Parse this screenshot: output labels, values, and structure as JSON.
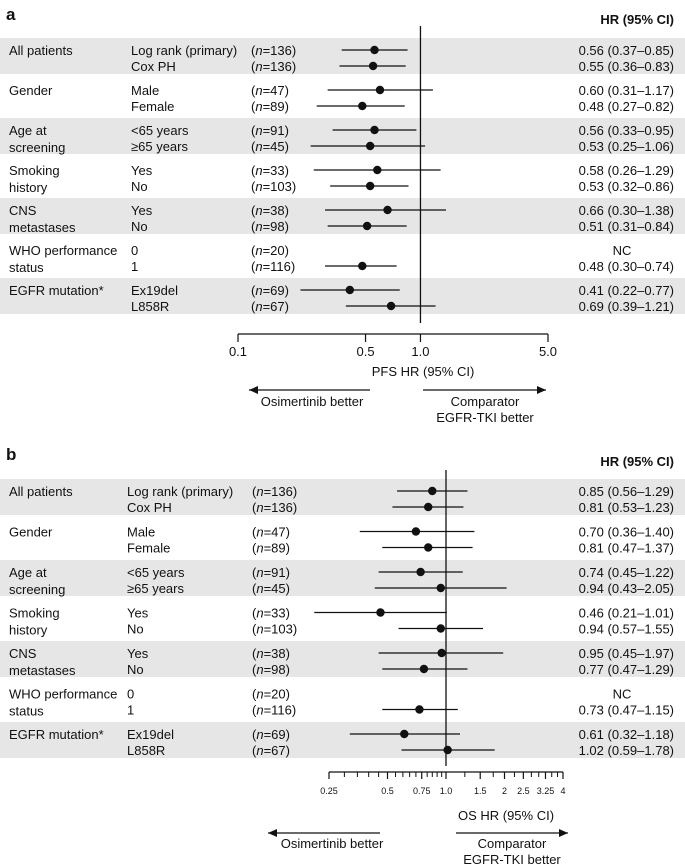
{
  "chart_data": [
    {
      "type": "forest",
      "panel_label": "a",
      "hr_header": "HR (95% CI)",
      "axis_label": "PFS HR (95% CI)",
      "x_scale": "log",
      "xlim": [
        0.1,
        5.0
      ],
      "ticks": [
        {
          "value": 0.1,
          "label": "0.1"
        },
        {
          "value": 0.5,
          "label": "0.5"
        },
        {
          "value": 1.0,
          "label": "1.0"
        },
        {
          "value": 5.0,
          "label": "5.0"
        }
      ],
      "reference_line": 1.0,
      "favors_left": [
        "Osimertinib better"
      ],
      "favors_right": [
        "Comparator",
        "EGFR-TKI better"
      ],
      "groups": [
        {
          "label": [
            "All patients"
          ],
          "rows": [
            {
              "subgroup": "Log rank (primary)",
              "n": "136",
              "hr": 0.56,
              "lo": 0.37,
              "hi": 0.85,
              "text": "0.56 (0.37–0.85)"
            },
            {
              "subgroup": "Cox PH",
              "n": "136",
              "hr": 0.55,
              "lo": 0.36,
              "hi": 0.83,
              "text": "0.55 (0.36–0.83)"
            }
          ]
        },
        {
          "label": [
            "Gender"
          ],
          "rows": [
            {
              "subgroup": "Male",
              "n": "47",
              "hr": 0.6,
              "lo": 0.31,
              "hi": 1.17,
              "text": "0.60 (0.31–1.17)"
            },
            {
              "subgroup": "Female",
              "n": "89",
              "hr": 0.48,
              "lo": 0.27,
              "hi": 0.82,
              "text": "0.48 (0.27–0.82)"
            }
          ]
        },
        {
          "label": [
            "Age at",
            "screening"
          ],
          "rows": [
            {
              "subgroup": "<65 years",
              "n": "91",
              "hr": 0.56,
              "lo": 0.33,
              "hi": 0.95,
              "text": "0.56 (0.33–0.95)"
            },
            {
              "subgroup": "≥65 years",
              "n": "45",
              "hr": 0.53,
              "lo": 0.25,
              "hi": 1.06,
              "text": "0.53 (0.25–1.06)"
            }
          ]
        },
        {
          "label": [
            "Smoking",
            "history"
          ],
          "rows": [
            {
              "subgroup": "Yes",
              "n": "33",
              "hr": 0.58,
              "lo": 0.26,
              "hi": 1.29,
              "text": "0.58 (0.26–1.29)"
            },
            {
              "subgroup": "No",
              "n": "103",
              "hr": 0.53,
              "lo": 0.32,
              "hi": 0.86,
              "text": "0.53 (0.32–0.86)"
            }
          ]
        },
        {
          "label": [
            "CNS",
            "metastases"
          ],
          "rows": [
            {
              "subgroup": "Yes",
              "n": "38",
              "hr": 0.66,
              "lo": 0.3,
              "hi": 1.38,
              "text": "0.66 (0.30–1.38)"
            },
            {
              "subgroup": "No",
              "n": "98",
              "hr": 0.51,
              "lo": 0.31,
              "hi": 0.84,
              "text": "0.51 (0.31–0.84)"
            }
          ]
        },
        {
          "label": [
            "WHO performance",
            "status"
          ],
          "rows": [
            {
              "subgroup": "0",
              "n": "20",
              "hr": null,
              "lo": null,
              "hi": null,
              "text": "NC"
            },
            {
              "subgroup": "1",
              "n": "116",
              "hr": 0.48,
              "lo": 0.3,
              "hi": 0.74,
              "text": "0.48 (0.30–0.74)"
            }
          ]
        },
        {
          "label": [
            "EGFR mutation*"
          ],
          "rows": [
            {
              "subgroup": "Ex19del",
              "n": "69",
              "hr": 0.41,
              "lo": 0.22,
              "hi": 0.77,
              "text": "0.41 (0.22–0.77)"
            },
            {
              "subgroup": "L858R",
              "n": "67",
              "hr": 0.69,
              "lo": 0.39,
              "hi": 1.21,
              "text": "0.69 (0.39–1.21)"
            }
          ]
        }
      ]
    },
    {
      "type": "forest",
      "panel_label": "b",
      "hr_header": "HR (95% CI)",
      "axis_label": "OS HR (95% CI)",
      "x_scale": "log",
      "xlim": [
        0.25,
        4
      ],
      "ticks": [
        {
          "value": 0.25,
          "label": "0.25"
        },
        {
          "value": 0.5,
          "label": "0.5"
        },
        {
          "value": 0.75,
          "label": "0.75"
        },
        {
          "value": 1.0,
          "label": "1.0"
        },
        {
          "value": 1.5,
          "label": "1.5"
        },
        {
          "value": 2,
          "label": "2"
        },
        {
          "value": 2.5,
          "label": "2.5"
        },
        {
          "value": 3.25,
          "label": "3.25"
        },
        {
          "value": 4,
          "label": "4"
        }
      ],
      "minor_ticks": [
        0.3,
        0.35,
        0.4,
        0.45,
        0.55,
        0.6,
        0.65,
        0.7,
        0.8,
        0.85,
        0.9,
        0.95,
        1.25,
        1.75,
        2.25,
        2.75,
        3.0,
        3.5,
        3.75
      ],
      "reference_line": 1.0,
      "favors_left": [
        "Osimertinib better"
      ],
      "favors_right": [
        "Comparator",
        "EGFR-TKI better"
      ],
      "groups": [
        {
          "label": [
            "All patients"
          ],
          "rows": [
            {
              "subgroup": "Log rank (primary)",
              "n": "136",
              "hr": 0.85,
              "lo": 0.56,
              "hi": 1.29,
              "text": "0.85 (0.56–1.29)"
            },
            {
              "subgroup": "Cox PH",
              "n": "136",
              "hr": 0.81,
              "lo": 0.53,
              "hi": 1.23,
              "text": "0.81 (0.53–1.23)"
            }
          ]
        },
        {
          "label": [
            "Gender"
          ],
          "rows": [
            {
              "subgroup": "Male",
              "n": "47",
              "hr": 0.7,
              "lo": 0.36,
              "hi": 1.4,
              "text": "0.70 (0.36–1.40)"
            },
            {
              "subgroup": "Female",
              "n": "89",
              "hr": 0.81,
              "lo": 0.47,
              "hi": 1.37,
              "text": "0.81 (0.47–1.37)"
            }
          ]
        },
        {
          "label": [
            "Age at",
            "screening"
          ],
          "rows": [
            {
              "subgroup": "<65 years",
              "n": "91",
              "hr": 0.74,
              "lo": 0.45,
              "hi": 1.22,
              "text": "0.74 (0.45–1.22)"
            },
            {
              "subgroup": "≥65 years",
              "n": "45",
              "hr": 0.94,
              "lo": 0.43,
              "hi": 2.05,
              "text": "0.94 (0.43–2.05)"
            }
          ]
        },
        {
          "label": [
            "Smoking",
            "history"
          ],
          "rows": [
            {
              "subgroup": "Yes",
              "n": "33",
              "hr": 0.46,
              "lo": 0.21,
              "hi": 1.01,
              "text": "0.46 (0.21–1.01)"
            },
            {
              "subgroup": "No",
              "n": "103",
              "hr": 0.94,
              "lo": 0.57,
              "hi": 1.55,
              "text": "0.94 (0.57–1.55)"
            }
          ]
        },
        {
          "label": [
            "CNS",
            "metastases"
          ],
          "rows": [
            {
              "subgroup": "Yes",
              "n": "38",
              "hr": 0.95,
              "lo": 0.45,
              "hi": 1.97,
              "text": "0.95 (0.45–1.97)"
            },
            {
              "subgroup": "No",
              "n": "98",
              "hr": 0.77,
              "lo": 0.47,
              "hi": 1.29,
              "text": "0.77 (0.47–1.29)"
            }
          ]
        },
        {
          "label": [
            "WHO performance",
            "status"
          ],
          "rows": [
            {
              "subgroup": "0",
              "n": "20",
              "hr": null,
              "lo": null,
              "hi": null,
              "text": "NC"
            },
            {
              "subgroup": "1",
              "n": "116",
              "hr": 0.73,
              "lo": 0.47,
              "hi": 1.15,
              "text": "0.73 (0.47–1.15)"
            }
          ]
        },
        {
          "label": [
            "EGFR mutation*"
          ],
          "rows": [
            {
              "subgroup": "Ex19del",
              "n": "69",
              "hr": 0.61,
              "lo": 0.32,
              "hi": 1.18,
              "text": "0.61 (0.32–1.18)"
            },
            {
              "subgroup": "L858R",
              "n": "67",
              "hr": 1.02,
              "lo": 0.59,
              "hi": 1.78,
              "text": "1.02 (0.59–1.78)"
            }
          ]
        }
      ]
    }
  ]
}
